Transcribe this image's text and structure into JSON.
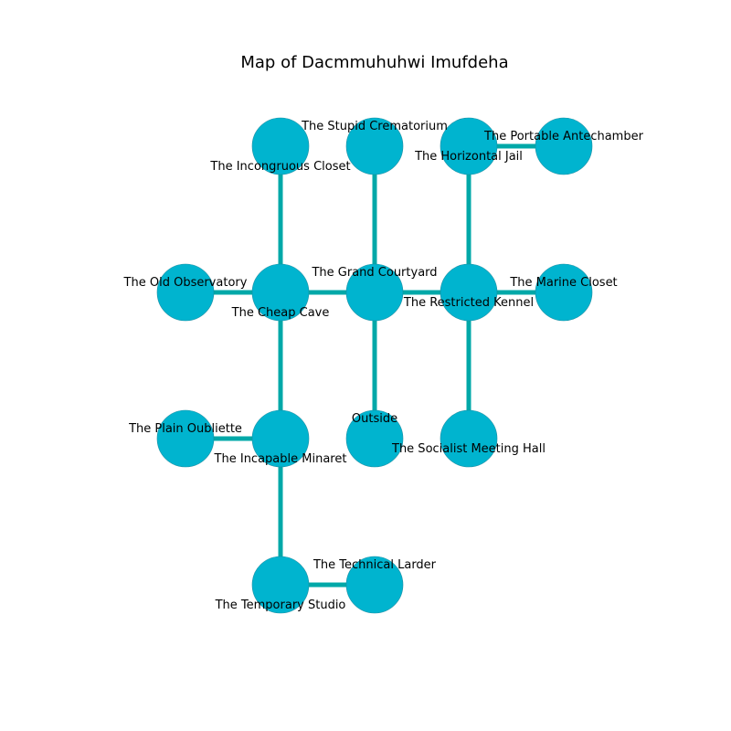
{
  "title": "Map of Dacmmuhuhwi Imufdeha",
  "colors": {
    "node_fill": "#00b4cf",
    "node_stroke": "#1a8ea3",
    "edge": "#00a8a8"
  },
  "nodes": [
    {
      "id": "incongruous-closet",
      "label": "The Incongruous Closet"
    },
    {
      "id": "stupid-crematorium",
      "label": "The Stupid Crematorium"
    },
    {
      "id": "horizontal-jail",
      "label": "The Horizontal Jail"
    },
    {
      "id": "portable-antechamber",
      "label": "The Portable Antechamber"
    },
    {
      "id": "old-observatory",
      "label": "The Old Observatory"
    },
    {
      "id": "cheap-cave",
      "label": "The Cheap Cave"
    },
    {
      "id": "grand-courtyard",
      "label": "The Grand Courtyard"
    },
    {
      "id": "restricted-kennel",
      "label": "The Restricted Kennel"
    },
    {
      "id": "marine-closet",
      "label": "The Marine Closet"
    },
    {
      "id": "plain-oubliette",
      "label": "The Plain Oubliette"
    },
    {
      "id": "incapable-minaret",
      "label": "The Incapable Minaret"
    },
    {
      "id": "outside",
      "label": "Outside"
    },
    {
      "id": "socialist-meeting-hall",
      "label": "The Socialist Meeting Hall"
    },
    {
      "id": "temporary-studio",
      "label": "The Temporary Studio"
    },
    {
      "id": "technical-larder",
      "label": "The Technical Larder"
    }
  ],
  "edges": [
    [
      "incongruous-closet",
      "cheap-cave"
    ],
    [
      "stupid-crematorium",
      "grand-courtyard"
    ],
    [
      "horizontal-jail",
      "portable-antechamber"
    ],
    [
      "horizontal-jail",
      "restricted-kennel"
    ],
    [
      "old-observatory",
      "cheap-cave"
    ],
    [
      "cheap-cave",
      "grand-courtyard"
    ],
    [
      "grand-courtyard",
      "restricted-kennel"
    ],
    [
      "restricted-kennel",
      "marine-closet"
    ],
    [
      "cheap-cave",
      "incapable-minaret"
    ],
    [
      "grand-courtyard",
      "outside"
    ],
    [
      "restricted-kennel",
      "socialist-meeting-hall"
    ],
    [
      "plain-oubliette",
      "incapable-minaret"
    ],
    [
      "incapable-minaret",
      "temporary-studio"
    ],
    [
      "temporary-studio",
      "technical-larder"
    ]
  ]
}
